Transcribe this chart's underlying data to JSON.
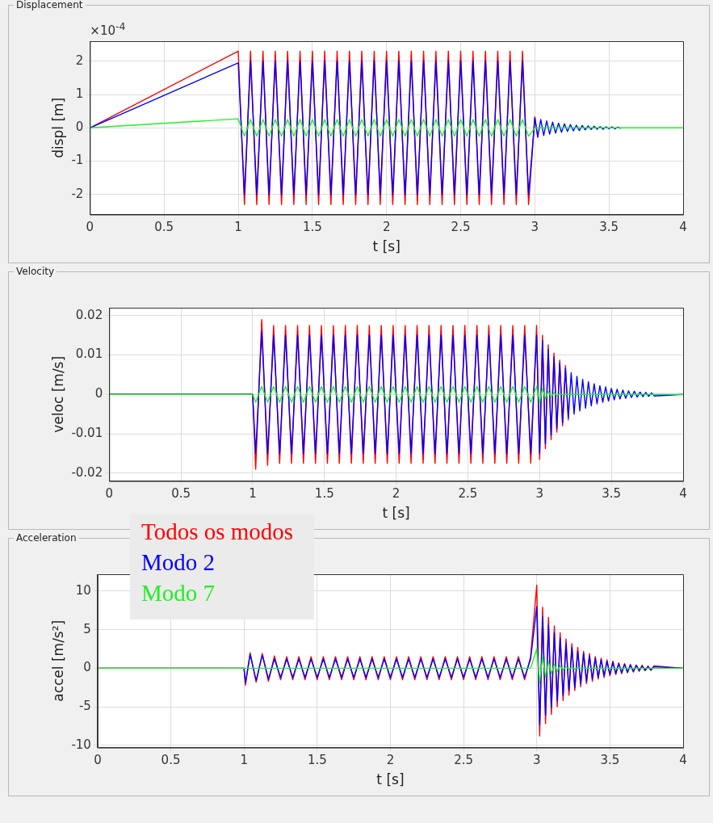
{
  "chart_data": [
    {
      "type": "line",
      "title": "Displacement",
      "xlabel": "t [s]",
      "ylabel": "displ [m]",
      "annotations": [
        "×10$^{-4}$"
      ],
      "grid": true,
      "xlim": [
        0,
        4
      ],
      "ylim": [
        -2.6,
        2.6
      ],
      "xticks": [
        0,
        0.5,
        1,
        1.5,
        2,
        2.5,
        3,
        3.5,
        4
      ],
      "yticks": [
        -2,
        -1,
        0,
        1,
        2
      ],
      "x": [
        0,
        1,
        1.042,
        1.083,
        1.125,
        1.167,
        1.208,
        1.25,
        1.292,
        1.333,
        1.375,
        1.417,
        1.458,
        1.5,
        1.542,
        1.583,
        1.625,
        1.667,
        1.708,
        1.75,
        1.792,
        1.833,
        1.875,
        1.917,
        1.958,
        2,
        2.042,
        2.083,
        2.125,
        2.167,
        2.208,
        2.25,
        2.292,
        2.333,
        2.375,
        2.417,
        2.458,
        2.5,
        2.542,
        2.583,
        2.625,
        2.667,
        2.708,
        2.75,
        2.792,
        2.833,
        2.875,
        2.917,
        2.958,
        3,
        3.02,
        3.04,
        3.06,
        3.08,
        3.1,
        3.12,
        3.14,
        3.16,
        3.18,
        3.2,
        3.22,
        3.24,
        3.26,
        3.28,
        3.3,
        3.32,
        3.34,
        3.36,
        3.38,
        3.4,
        3.42,
        3.44,
        3.46,
        3.48,
        3.5,
        3.52,
        3.54,
        3.56,
        3.58,
        3.6,
        3.62,
        3.64,
        3.66,
        3.68,
        3.7,
        3.72,
        3.74,
        3.76,
        3.78,
        3.8,
        4
      ],
      "series": [
        {
          "color": "#ff0000",
          "values": [
            0,
            2.3,
            -2.3,
            2.3,
            -2.3,
            2.3,
            -2.3,
            2.3,
            -2.3,
            2.3,
            -2.3,
            2.3,
            -2.3,
            2.3,
            -2.3,
            2.3,
            -2.3,
            2.3,
            -2.3,
            2.3,
            -2.3,
            2.3,
            -2.3,
            2.3,
            -2.3,
            2.3,
            -2.3,
            2.3,
            -2.3,
            2.3,
            -2.3,
            2.3,
            -2.3,
            2.3,
            -2.3,
            2.3,
            -2.3,
            2.3,
            -2.3,
            2.3,
            -2.3,
            2.3,
            -2.3,
            2.3,
            -2.3,
            2.3,
            -2.3,
            2.3,
            -2.3,
            0.33,
            -0.3,
            null,
            null,
            null,
            null,
            null,
            null,
            null,
            null,
            null,
            null,
            null,
            null,
            null,
            null,
            null,
            null,
            null,
            null,
            null,
            null,
            null,
            null,
            null,
            null,
            null,
            null,
            null,
            null,
            null,
            null,
            null,
            null,
            null,
            null,
            null,
            null,
            null,
            null,
            null,
            null
          ]
        },
        {
          "color": "#0000ff",
          "values": [
            0,
            1.95,
            -2,
            2,
            -2,
            2,
            -2,
            2,
            -2,
            2,
            -2,
            2,
            -2,
            2,
            -2,
            2,
            -2,
            2,
            -2,
            2,
            -2,
            2,
            -2,
            2,
            -2,
            2,
            -2,
            2,
            -2,
            2,
            -2,
            2,
            -2,
            2,
            -2,
            2,
            -2,
            2,
            -2,
            2,
            -2,
            2,
            -2,
            2,
            -2,
            2,
            -2,
            2,
            -2,
            0.3,
            -0.27,
            0.25,
            -0.23,
            0.21,
            -0.19,
            0.17,
            -0.16,
            0.14,
            -0.13,
            0.12,
            -0.11,
            0.1,
            -0.09,
            0.08,
            -0.08,
            0.07,
            -0.06,
            0.06,
            -0.05,
            0.05,
            -0.04,
            0.04,
            -0.04,
            0.03,
            -0.03,
            0.03,
            -0.03,
            0.02,
            -0.02,
            null,
            null,
            null,
            null,
            null,
            null,
            null,
            null,
            null,
            null,
            null,
            null
          ]
        },
        {
          "color": "#22ee22",
          "values": [
            0,
            0.27,
            -0.25,
            0.25,
            -0.25,
            0.25,
            -0.25,
            0.25,
            -0.25,
            0.25,
            -0.25,
            0.25,
            -0.25,
            0.25,
            -0.25,
            0.25,
            -0.25,
            0.25,
            -0.25,
            0.25,
            -0.25,
            0.25,
            -0.25,
            0.25,
            -0.25,
            0.25,
            -0.25,
            0.25,
            -0.25,
            0.25,
            -0.25,
            0.25,
            -0.25,
            0.25,
            -0.25,
            0.25,
            -0.25,
            0.25,
            -0.25,
            0.25,
            -0.25,
            0.25,
            -0.25,
            0.25,
            -0.25,
            0.25,
            -0.25,
            0.25,
            -0.25,
            0,
            0,
            0,
            0,
            0,
            0,
            0,
            0,
            0,
            0,
            0,
            0,
            0,
            0,
            0,
            0,
            0,
            0,
            0,
            0,
            0,
            0,
            0,
            0,
            0,
            0,
            0,
            0,
            0,
            0,
            0,
            0,
            0,
            0,
            0,
            0,
            0,
            0,
            0,
            0,
            0,
            0
          ]
        }
      ]
    },
    {
      "type": "line",
      "title": "Velocity",
      "xlabel": "t [s]",
      "ylabel": "veloc [m/s]",
      "grid": true,
      "xlim": [
        0,
        4
      ],
      "ylim": [
        -0.022,
        0.022
      ],
      "xticks": [
        0,
        0.5,
        1,
        1.5,
        2,
        2.5,
        3,
        3.5,
        4
      ],
      "yticks": [
        -0.02,
        -0.01,
        0,
        0.01,
        0.02
      ],
      "x": [
        0,
        1,
        1.021,
        1.063,
        1.104,
        1.146,
        1.188,
        1.229,
        1.271,
        1.313,
        1.354,
        1.396,
        1.438,
        1.479,
        1.521,
        1.563,
        1.604,
        1.646,
        1.688,
        1.729,
        1.771,
        1.813,
        1.854,
        1.896,
        1.938,
        1.979,
        2.021,
        2.063,
        2.104,
        2.146,
        2.188,
        2.229,
        2.271,
        2.313,
        2.354,
        2.396,
        2.438,
        2.479,
        2.521,
        2.563,
        2.604,
        2.646,
        2.688,
        2.729,
        2.771,
        2.813,
        2.854,
        2.896,
        2.938,
        2.979,
        3,
        3.02,
        3.04,
        3.06,
        3.08,
        3.1,
        3.12,
        3.14,
        3.16,
        3.18,
        3.2,
        3.22,
        3.24,
        3.26,
        3.28,
        3.3,
        3.32,
        3.34,
        3.36,
        3.38,
        3.4,
        3.42,
        3.44,
        3.46,
        3.48,
        3.5,
        3.52,
        3.54,
        3.56,
        3.58,
        3.6,
        3.62,
        3.64,
        3.66,
        3.68,
        3.7,
        3.72,
        3.74,
        3.76,
        3.78,
        3.8,
        4
      ],
      "series": [
        {
          "color": "#ff0000",
          "values": [
            0,
            0,
            -0.019,
            0.019,
            -0.018,
            0.0175,
            -0.0175,
            0.0175,
            -0.0175,
            0.0175,
            -0.0175,
            0.0175,
            -0.0175,
            0.0175,
            -0.0175,
            0.0175,
            -0.0175,
            0.0175,
            -0.0175,
            0.0175,
            -0.0175,
            0.0175,
            -0.0175,
            0.0175,
            -0.0175,
            0.0175,
            -0.0175,
            0.0175,
            -0.0175,
            0.0175,
            -0.0175,
            0.0175,
            -0.0175,
            0.0175,
            -0.0175,
            0.0175,
            -0.0175,
            0.0175,
            -0.0175,
            0.0175,
            -0.0175,
            0.0175,
            -0.0175,
            0.0175,
            -0.0175,
            0.0175,
            -0.0175,
            0.0175,
            -0.0175,
            0.0175,
            -0.0165,
            0.015,
            -0.0138,
            0.0126,
            -0.0115,
            0.0105,
            -0.0096,
            0.0087,
            -0.008,
            0.0073,
            -0.0066,
            null,
            null,
            null,
            null,
            null,
            null,
            null,
            null,
            null,
            null,
            null,
            null,
            null,
            null,
            null,
            null,
            null,
            null,
            null,
            null,
            null,
            null,
            null,
            null,
            null,
            null,
            null,
            null,
            null,
            null,
            null
          ]
        },
        {
          "color": "#0000ff",
          "values": [
            0,
            0,
            -0.015,
            0.016,
            -0.015,
            0.015,
            -0.015,
            0.015,
            -0.015,
            0.015,
            -0.015,
            0.015,
            -0.015,
            0.015,
            -0.015,
            0.015,
            -0.015,
            0.015,
            -0.015,
            0.015,
            -0.015,
            0.015,
            -0.015,
            0.015,
            -0.015,
            0.015,
            -0.015,
            0.015,
            -0.015,
            0.015,
            -0.015,
            0.015,
            -0.015,
            0.015,
            -0.015,
            0.015,
            -0.015,
            0.015,
            -0.015,
            0.015,
            -0.015,
            0.015,
            -0.015,
            0.015,
            -0.015,
            0.015,
            -0.015,
            0.015,
            -0.015,
            0.015,
            -0.015,
            0.0137,
            -0.0125,
            0.0114,
            -0.0104,
            0.0095,
            -0.0087,
            0.0079,
            -0.0072,
            0.0066,
            -0.006,
            0.0055,
            -0.005,
            0.0046,
            -0.0042,
            0.0038,
            -0.0035,
            0.0032,
            -0.0029,
            0.0027,
            -0.0024,
            0.0022,
            -0.002,
            0.0019,
            -0.0017,
            0.0015,
            -0.0014,
            0.0013,
            -0.0012,
            0.0011,
            -0.001,
            0.0009,
            -0.0008,
            0.0008,
            -0.0007,
            0.0006,
            -0.0006,
            0.0005,
            -0.0005,
            0.0004,
            -0.0004,
            0
          ]
        },
        {
          "color": "#22ee22",
          "values": [
            0,
            0,
            -0.002,
            0.002,
            -0.002,
            0.002,
            -0.002,
            0.002,
            -0.002,
            0.002,
            -0.002,
            0.002,
            -0.002,
            0.002,
            -0.002,
            0.002,
            -0.002,
            0.002,
            -0.002,
            0.002,
            -0.002,
            0.002,
            -0.002,
            0.002,
            -0.002,
            0.002,
            -0.002,
            0.002,
            -0.002,
            0.002,
            -0.002,
            0.002,
            -0.002,
            0.002,
            -0.002,
            0.002,
            -0.002,
            0.002,
            -0.002,
            0.002,
            -0.002,
            0.002,
            -0.002,
            0.002,
            -0.002,
            0.002,
            -0.002,
            0.002,
            -0.002,
            0.002,
            -0.002,
            0.0015,
            -0.0011,
            0.0008,
            -0.0006,
            0.0004,
            -0.0003,
            0.0002,
            -0.0001,
            0,
            0,
            0,
            0,
            0,
            0,
            0,
            0,
            0,
            0,
            0,
            0,
            0,
            0,
            0,
            0,
            0,
            0,
            0,
            0,
            0,
            0,
            0,
            0,
            0,
            0,
            0,
            0,
            0,
            0,
            0,
            0,
            0
          ]
        }
      ]
    },
    {
      "type": "line",
      "title": "Acceleration",
      "xlabel": "t [s]",
      "ylabel": "accel [m/s²]",
      "grid": true,
      "legend": "top left",
      "xlim": [
        0,
        4
      ],
      "ylim": [
        -10.3,
        12.2
      ],
      "xticks": [
        0,
        0.5,
        1,
        1.5,
        2,
        2.5,
        3,
        3.5,
        4
      ],
      "yticks": [
        -10,
        -5,
        0,
        5,
        10
      ],
      "x": [
        0,
        1,
        1.01,
        1.042,
        1.083,
        1.125,
        1.167,
        1.208,
        1.25,
        1.292,
        1.333,
        1.375,
        1.417,
        1.458,
        1.5,
        1.542,
        1.583,
        1.625,
        1.667,
        1.708,
        1.75,
        1.792,
        1.833,
        1.875,
        1.917,
        1.958,
        2,
        2.042,
        2.083,
        2.125,
        2.167,
        2.208,
        2.25,
        2.292,
        2.333,
        2.375,
        2.417,
        2.458,
        2.5,
        2.542,
        2.583,
        2.625,
        2.667,
        2.708,
        2.75,
        2.792,
        2.833,
        2.875,
        2.917,
        2.958,
        3,
        3.02,
        3.04,
        3.06,
        3.08,
        3.1,
        3.12,
        3.14,
        3.16,
        3.18,
        3.2,
        3.22,
        3.24,
        3.26,
        3.28,
        3.3,
        3.32,
        3.34,
        3.36,
        3.38,
        3.4,
        3.42,
        3.44,
        3.46,
        3.48,
        3.5,
        3.52,
        3.54,
        3.56,
        3.58,
        3.6,
        3.62,
        3.64,
        3.66,
        3.68,
        3.7,
        3.72,
        3.74,
        3.76,
        3.78,
        3.8,
        4
      ],
      "series": [
        {
          "name": "Todos os modos",
          "color": "#ff0000",
          "values": [
            0,
            0,
            -2.2,
            2,
            -1.8,
            1.9,
            -1.7,
            1.6,
            -1.5,
            1.5,
            -1.5,
            1.5,
            -1.5,
            1.5,
            -1.5,
            1.5,
            -1.5,
            1.5,
            -1.5,
            1.5,
            -1.5,
            1.5,
            -1.5,
            1.5,
            -1.5,
            1.5,
            -1.5,
            1.5,
            -1.5,
            1.5,
            -1.5,
            1.5,
            -1.5,
            1.5,
            -1.5,
            1.5,
            -1.5,
            1.5,
            -1.5,
            1.5,
            -1.5,
            1.5,
            -1.5,
            1.5,
            -1.5,
            1.5,
            -1.5,
            1.5,
            -1.5,
            1.5,
            10.8,
            -8.8,
            7.9,
            -7.2,
            6.6,
            -6,
            5.5,
            -5,
            4.6,
            -4.2,
            3.8,
            -3.5,
            3.2,
            -2.9,
            2.7,
            -2.4,
            2.2,
            -2,
            1.9,
            -1.7,
            1.5,
            -1.4,
            1.3,
            -1.2,
            1.1,
            -1,
            0.9,
            -0.8,
            0.7,
            -0.7,
            0.6,
            -0.6,
            0.5,
            -0.5,
            0.4,
            -0.4,
            0.4,
            -0.3,
            0.3,
            -0.3,
            0.3,
            0
          ]
        },
        {
          "name": "Modo 2",
          "color": "#0000ff",
          "values": [
            0,
            0,
            -1.9,
            1.8,
            -1.6,
            1.7,
            -1.4,
            1.2,
            -1.2,
            1.2,
            -1.2,
            1.2,
            -1.2,
            1.2,
            -1.2,
            1.2,
            -1.2,
            1.2,
            -1.2,
            1.2,
            -1.2,
            1.2,
            -1.2,
            1.2,
            -1.2,
            1.2,
            -1.2,
            1.2,
            -1.2,
            1.2,
            -1.2,
            1.2,
            -1.2,
            1.2,
            -1.2,
            1.2,
            -1.2,
            1.2,
            -1.2,
            1.2,
            -1.2,
            1.2,
            -1.2,
            1.2,
            -1.2,
            1.2,
            -1.2,
            1.2,
            -1.2,
            1.2,
            8,
            -7.3,
            6.7,
            -6.1,
            5.6,
            -5.1,
            4.6,
            -4.2,
            3.9,
            -3.5,
            3.2,
            -2.9,
            2.7,
            -2.5,
            2.2,
            -2,
            1.9,
            -1.7,
            1.6,
            -1.4,
            1.3,
            -1.2,
            1.1,
            -1,
            0.9,
            -0.8,
            0.8,
            -0.7,
            0.6,
            -0.6,
            0.5,
            -0.5,
            0.4,
            -0.4,
            0.4,
            -0.3,
            0.3,
            -0.3,
            0.2,
            -0.2,
            0.2,
            0
          ]
        },
        {
          "name": "Modo 7",
          "color": "#22ee22",
          "values": [
            0,
            0,
            0,
            0,
            0,
            0,
            0,
            0,
            0,
            0,
            0,
            0,
            0,
            0,
            0,
            0,
            0,
            0,
            0,
            0,
            0,
            0,
            0,
            0,
            0,
            0,
            0,
            0,
            0,
            0,
            0,
            0,
            0,
            0,
            0,
            0,
            0,
            0,
            0,
            0,
            0,
            0,
            0,
            0,
            0,
            0,
            0,
            0,
            0,
            0,
            2.5,
            -1.9,
            1.5,
            -1.1,
            0.9,
            -0.7,
            0.5,
            -0.4,
            0.3,
            -0.2,
            0.2,
            -0.1,
            0.1,
            -0.1,
            0.1,
            0,
            0,
            0,
            0,
            0,
            0,
            0,
            0,
            0,
            0,
            0,
            0,
            0,
            0,
            0,
            0,
            0,
            0,
            0,
            0,
            0,
            0,
            0,
            0,
            0,
            0,
            0
          ]
        }
      ]
    }
  ]
}
